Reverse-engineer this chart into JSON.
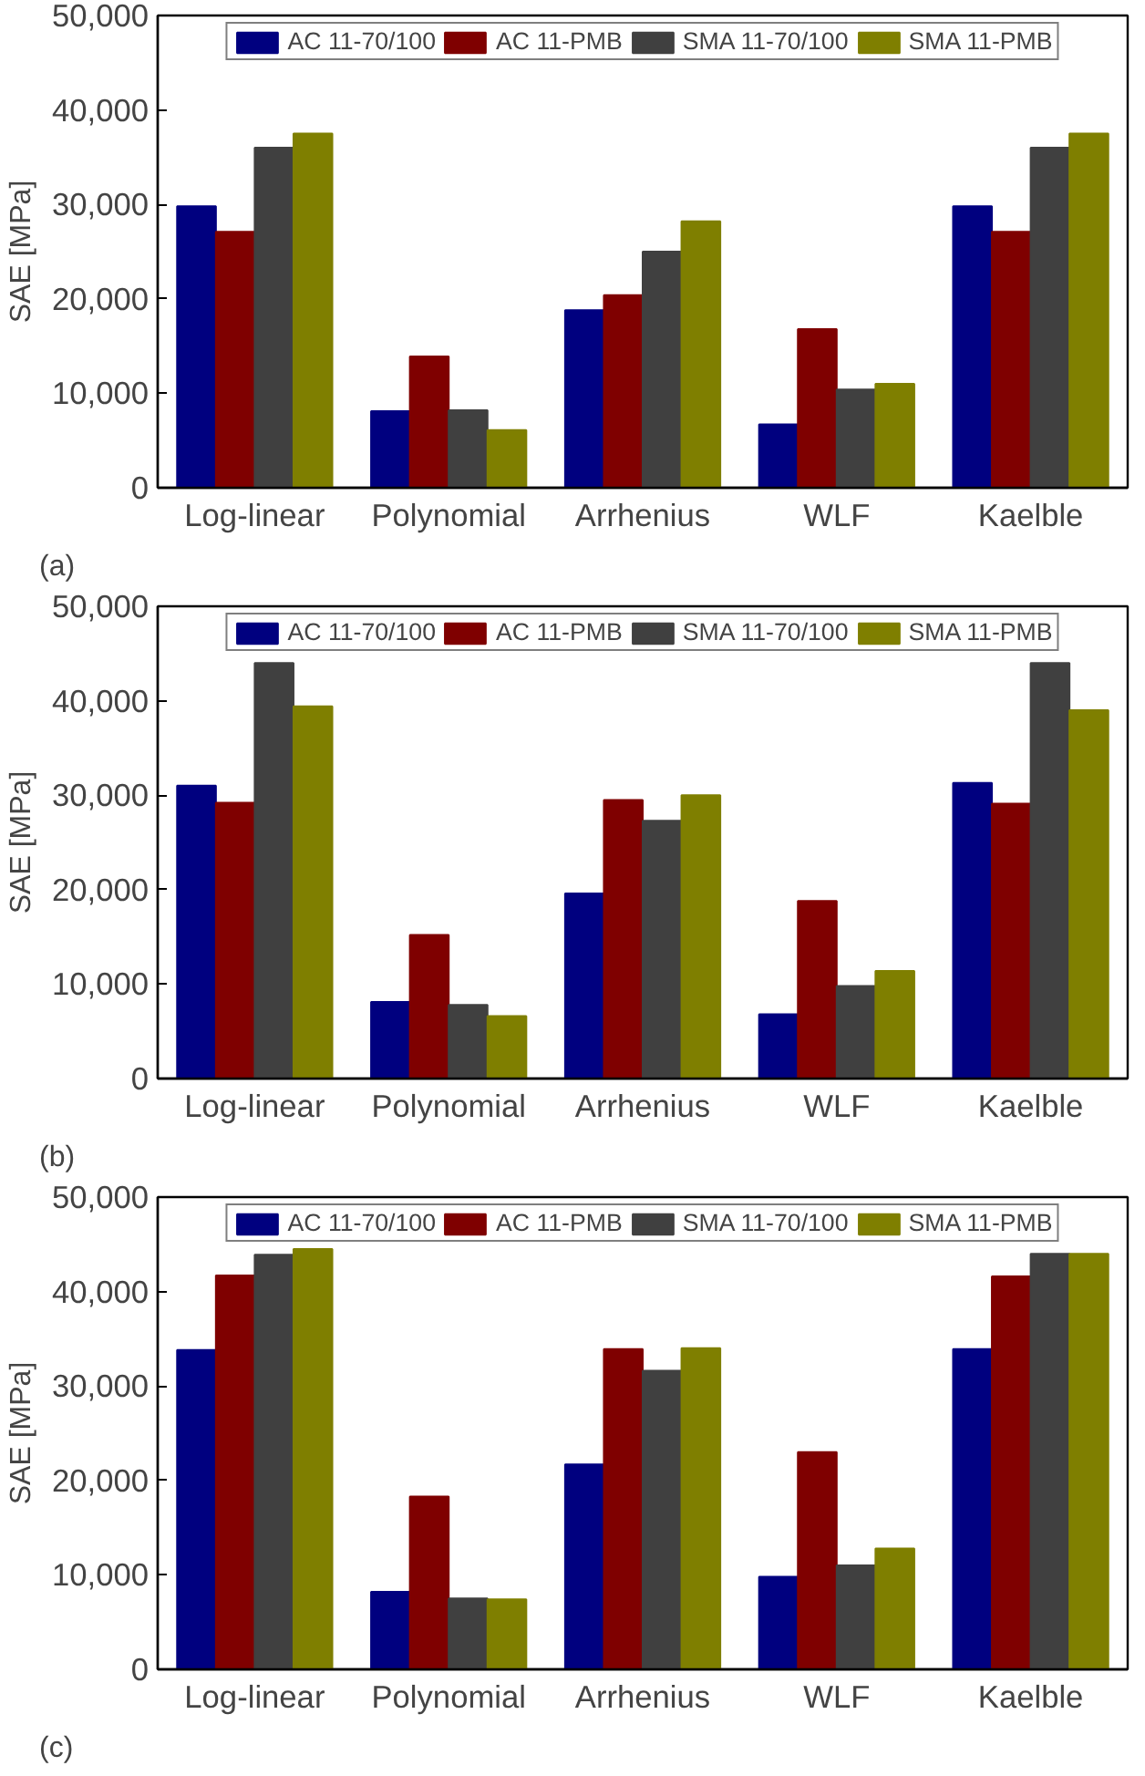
{
  "chart_data": [
    {
      "type": "bar",
      "ylabel": "SAE [MPa]",
      "annotations": [
        "(a)"
      ],
      "legend": "top",
      "categories": [
        "Log-linear",
        "Polynomial",
        "Arrhenius",
        "WLF",
        "Kaelble"
      ],
      "ylim": [
        0,
        50000
      ],
      "yticks": [
        {
          "value": 0,
          "label": "0"
        },
        {
          "value": 10000,
          "label": "10,000"
        },
        {
          "value": 20000,
          "label": "20,000"
        },
        {
          "value": 30000,
          "label": "30,000"
        },
        {
          "value": 40000,
          "label": "40,000"
        },
        {
          "value": 50000,
          "label": "50,000"
        }
      ],
      "series": [
        {
          "name": "AC 11-70/100",
          "color": "#00007f",
          "values": [
            29800,
            8100,
            18800,
            6700,
            29800
          ]
        },
        {
          "name": "AC 11-PMB",
          "color": "#7f0000",
          "values": [
            27100,
            13900,
            20400,
            16800,
            27100
          ]
        },
        {
          "name": "SMA 11-70/100",
          "color": "#404040",
          "values": [
            36000,
            8200,
            25000,
            10400,
            36000
          ]
        },
        {
          "name": "SMA 11-PMB",
          "color": "#7f7f00",
          "values": [
            37500,
            6100,
            28200,
            11000,
            37500
          ]
        }
      ]
    },
    {
      "type": "bar",
      "ylabel": "SAE [MPa]",
      "annotations": [
        "(b)"
      ],
      "legend": "top",
      "categories": [
        "Log-linear",
        "Polynomial",
        "Arrhenius",
        "WLF",
        "Kaelble"
      ],
      "ylim": [
        0,
        50000
      ],
      "yticks": [
        {
          "value": 0,
          "label": "0"
        },
        {
          "value": 10000,
          "label": "10,000"
        },
        {
          "value": 20000,
          "label": "20,000"
        },
        {
          "value": 30000,
          "label": "30,000"
        },
        {
          "value": 40000,
          "label": "40,000"
        },
        {
          "value": 50000,
          "label": "50,000"
        }
      ],
      "series": [
        {
          "name": "AC 11-70/100",
          "color": "#00007f",
          "values": [
            31000,
            8100,
            19600,
            6800,
            31300
          ]
        },
        {
          "name": "AC 11-PMB",
          "color": "#7f0000",
          "values": [
            29200,
            15200,
            29500,
            18800,
            29100
          ]
        },
        {
          "name": "SMA 11-70/100",
          "color": "#404040",
          "values": [
            44000,
            7800,
            27300,
            9800,
            44000
          ]
        },
        {
          "name": "SMA 11-PMB",
          "color": "#7f7f00",
          "values": [
            39400,
            6600,
            30000,
            11400,
            39000
          ]
        }
      ]
    },
    {
      "type": "bar",
      "ylabel": "SAE [MPa]",
      "annotations": [
        "(c)"
      ],
      "legend": "top",
      "categories": [
        "Log-linear",
        "Polynomial",
        "Arrhenius",
        "WLF",
        "Kaelble"
      ],
      "ylim": [
        0,
        50000
      ],
      "yticks": [
        {
          "value": 0,
          "label": "0"
        },
        {
          "value": 10000,
          "label": "10,000"
        },
        {
          "value": 20000,
          "label": "20,000"
        },
        {
          "value": 30000,
          "label": "30,000"
        },
        {
          "value": 40000,
          "label": "40,000"
        },
        {
          "value": 50000,
          "label": "50,000"
        }
      ],
      "series": [
        {
          "name": "AC 11-70/100",
          "color": "#00007f",
          "values": [
            33800,
            8200,
            21700,
            9800,
            33900
          ]
        },
        {
          "name": "AC 11-PMB",
          "color": "#7f0000",
          "values": [
            41700,
            18300,
            33900,
            23000,
            41600
          ]
        },
        {
          "name": "SMA 11-70/100",
          "color": "#404040",
          "values": [
            43900,
            7500,
            31600,
            11000,
            44000
          ]
        },
        {
          "name": "SMA 11-PMB",
          "color": "#7f7f00",
          "values": [
            44500,
            7400,
            34000,
            12800,
            44000
          ]
        }
      ]
    }
  ]
}
